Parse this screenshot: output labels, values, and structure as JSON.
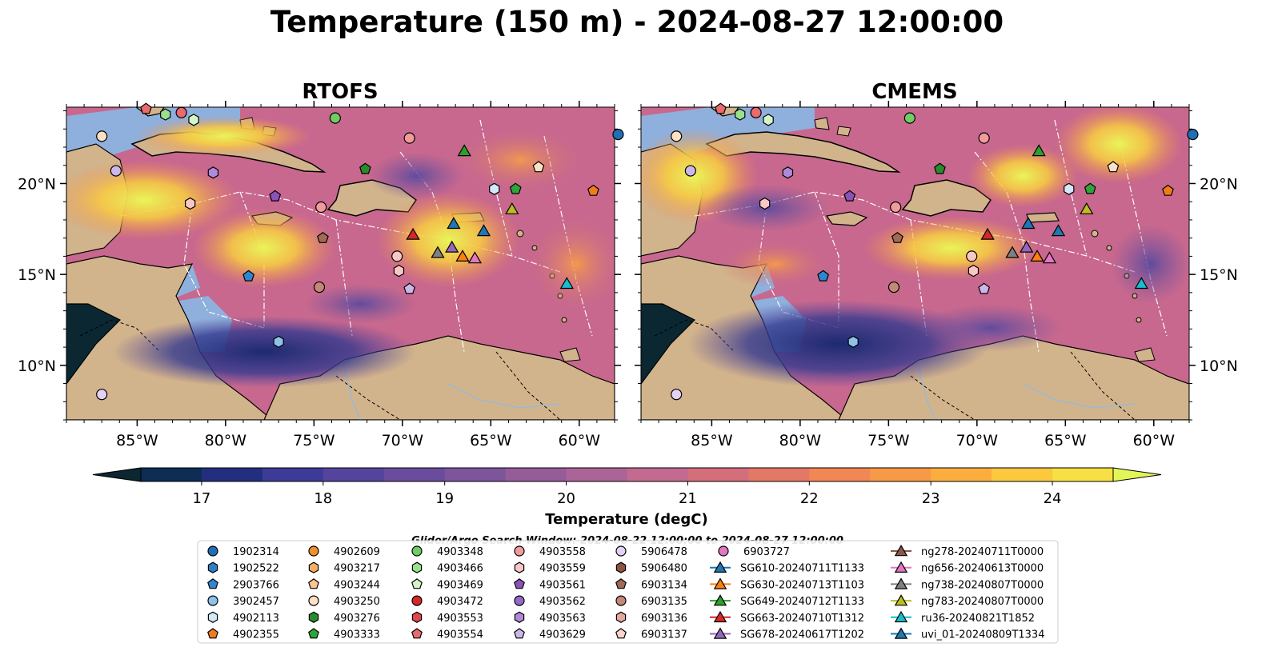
{
  "chart_data": {
    "type": "heatmap",
    "title": "Temperature (150 m) - 2024-08-27 12:00:00",
    "panels": [
      {
        "title": "RTOFS"
      },
      {
        "title": "CMEMS"
      }
    ],
    "x_axis": {
      "ticks": [
        -85,
        -80,
        -75,
        -70,
        -65,
        -60
      ],
      "tick_labels": [
        "85°W",
        "80°W",
        "75°W",
        "70°W",
        "65°W",
        "60°W"
      ],
      "range": [
        -89,
        -58
      ]
    },
    "y_axis": {
      "ticks": [
        10,
        15,
        20
      ],
      "tick_labels": [
        "10°N",
        "15°N",
        "20°N"
      ],
      "range": [
        7,
        24.2
      ]
    },
    "colorbar": {
      "label": "Temperature (degC)",
      "ticks": [
        17,
        18,
        19,
        20,
        21,
        22,
        23,
        24
      ],
      "range": [
        16.5,
        24.5
      ],
      "extend": "both",
      "levels": [
        "#0a2732",
        "#0d2d54",
        "#232f7e",
        "#3c3b97",
        "#54449c",
        "#6a4c9c",
        "#7e549b",
        "#955c9a",
        "#ab6498",
        "#c26a8f",
        "#d46e7b",
        "#e47867",
        "#f08755",
        "#f79a47",
        "#fbae3e",
        "#fbc83e",
        "#f6e044",
        "#e3f659"
      ]
    },
    "legend_title": "Glider/Argo Search Window: 2024-08-22 12:00:00 to 2024-08-27 12:00:00",
    "legend": [
      {
        "label": "1902314",
        "marker": "circle",
        "color": "#1f6fb4"
      },
      {
        "label": "1902522",
        "marker": "hexagon",
        "color": "#2e7fc6"
      },
      {
        "label": "2903766",
        "marker": "pentagon",
        "color": "#2f86d0"
      },
      {
        "label": "3902457",
        "marker": "circle",
        "color": "#8fc2ea"
      },
      {
        "label": "4902113",
        "marker": "hexagon",
        "color": "#d4e9f8"
      },
      {
        "label": "4902355",
        "marker": "pentagon",
        "color": "#f07c1c"
      },
      {
        "label": "4902609",
        "marker": "circle",
        "color": "#f28f2a"
      },
      {
        "label": "4903217",
        "marker": "hexagon",
        "color": "#f9ad63"
      },
      {
        "label": "4903244",
        "marker": "pentagon",
        "color": "#fcc58f"
      },
      {
        "label": "4903250",
        "marker": "circle",
        "color": "#fde1c4"
      },
      {
        "label": "4903276",
        "marker": "hexagon",
        "color": "#2a8b2a"
      },
      {
        "label": "4903333",
        "marker": "pentagon",
        "color": "#2fa43a"
      },
      {
        "label": "4903348",
        "marker": "circle",
        "color": "#6fcd63"
      },
      {
        "label": "4903466",
        "marker": "hexagon",
        "color": "#9be08c"
      },
      {
        "label": "4903469",
        "marker": "pentagon",
        "color": "#d3f5c8"
      },
      {
        "label": "4903472",
        "marker": "circle",
        "color": "#d7262a"
      },
      {
        "label": "4903553",
        "marker": "hexagon",
        "color": "#e0464a"
      },
      {
        "label": "4903554",
        "marker": "pentagon",
        "color": "#ea6b6d"
      },
      {
        "label": "4903558",
        "marker": "circle",
        "color": "#f29b9b"
      },
      {
        "label": "4903559",
        "marker": "hexagon",
        "color": "#f9c6c6"
      },
      {
        "label": "4903561",
        "marker": "pentagon",
        "color": "#8c52b8"
      },
      {
        "label": "4903562",
        "marker": "circle",
        "color": "#9569c5"
      },
      {
        "label": "4903563",
        "marker": "hexagon",
        "color": "#b08ad8"
      },
      {
        "label": "4903629",
        "marker": "pentagon",
        "color": "#cdb6ea"
      },
      {
        "label": "5906478",
        "marker": "circle",
        "color": "#e4d2f4"
      },
      {
        "label": "5906480",
        "marker": "hexagon",
        "color": "#8b5440"
      },
      {
        "label": "6903134",
        "marker": "pentagon",
        "color": "#a06a56"
      },
      {
        "label": "6903135",
        "marker": "circle",
        "color": "#c48878"
      },
      {
        "label": "6903136",
        "marker": "hexagon",
        "color": "#e3a8a0"
      },
      {
        "label": "6903137",
        "marker": "pentagon",
        "color": "#fbd4cc"
      },
      {
        "label": "6903727",
        "marker": "circle",
        "color": "#e377c2"
      },
      {
        "label": "SG610-20240711T1133",
        "marker": "triangle-line",
        "color": "#1f77b4"
      },
      {
        "label": "SG630-20240713T1103",
        "marker": "triangle-line",
        "color": "#ff7f0e"
      },
      {
        "label": "SG649-20240712T1133",
        "marker": "triangle-line",
        "color": "#2ca02c"
      },
      {
        "label": "SG663-20240710T1312",
        "marker": "triangle-line",
        "color": "#d62728"
      },
      {
        "label": "SG678-20240617T1202",
        "marker": "triangle-line",
        "color": "#9467bd"
      },
      {
        "label": "ng278-20240711T0000",
        "marker": "triangle-line",
        "color": "#8c564b"
      },
      {
        "label": "ng656-20240613T0000",
        "marker": "triangle-line",
        "color": "#e377c2"
      },
      {
        "label": "ng738-20240807T0000",
        "marker": "triangle-line",
        "color": "#7f7f7f"
      },
      {
        "label": "ng783-20240807T0000",
        "marker": "triangle-line",
        "color": "#bcbd22"
      },
      {
        "label": "ru36-20240821T1852",
        "marker": "triangle-line",
        "color": "#17becf"
      },
      {
        "label": "uvi_01-20240809T1334",
        "marker": "triangle-line",
        "color": "#1f77b4"
      }
    ],
    "markers": [
      {
        "lon": -87.0,
        "lat": 22.6,
        "shape": "circle",
        "color": "#fde1c4"
      },
      {
        "lon": -86.2,
        "lat": 20.7,
        "shape": "circle",
        "color": "#cdb6ea"
      },
      {
        "lon": -84.5,
        "lat": 24.1,
        "shape": "pentagon",
        "color": "#ea6b6d"
      },
      {
        "lon": -83.4,
        "lat": 23.8,
        "shape": "hexagon",
        "color": "#9be08c"
      },
      {
        "lon": -82.5,
        "lat": 23.9,
        "shape": "circle",
        "color": "#ea6b6d"
      },
      {
        "lon": -81.8,
        "lat": 23.5,
        "shape": "hexagon",
        "color": "#d3f5c8"
      },
      {
        "lon": -80.7,
        "lat": 20.6,
        "shape": "hexagon",
        "color": "#b08ad8"
      },
      {
        "lon": -82.0,
        "lat": 18.9,
        "shape": "hexagon",
        "color": "#f9c6c6"
      },
      {
        "lon": -77.2,
        "lat": 19.3,
        "shape": "pentagon",
        "color": "#8c52b8"
      },
      {
        "lon": -73.8,
        "lat": 23.6,
        "shape": "circle",
        "color": "#6fcd63"
      },
      {
        "lon": -69.6,
        "lat": 22.5,
        "shape": "circle",
        "color": "#f29b9b"
      },
      {
        "lon": -72.1,
        "lat": 20.8,
        "shape": "pentagon",
        "color": "#2a8b2a"
      },
      {
        "lon": -74.6,
        "lat": 18.7,
        "shape": "circle",
        "color": "#f29b9b"
      },
      {
        "lon": -74.5,
        "lat": 17.0,
        "shape": "pentagon",
        "color": "#a06a56"
      },
      {
        "lon": -78.7,
        "lat": 14.9,
        "shape": "pentagon",
        "color": "#2f86d0"
      },
      {
        "lon": -74.7,
        "lat": 14.3,
        "shape": "circle",
        "color": "#c48878"
      },
      {
        "lon": -70.3,
        "lat": 16.0,
        "shape": "circle",
        "color": "#f9c6c6"
      },
      {
        "lon": -70.2,
        "lat": 15.2,
        "shape": "hexagon",
        "color": "#f9c6c6"
      },
      {
        "lon": -69.6,
        "lat": 14.2,
        "shape": "pentagon",
        "color": "#cdb6ea"
      },
      {
        "lon": -77.0,
        "lat": 11.3,
        "shape": "hexagon",
        "color": "#8fc2ea"
      },
      {
        "lon": -87.0,
        "lat": 8.4,
        "shape": "circle",
        "color": "#e4d2f4"
      },
      {
        "lon": -64.8,
        "lat": 19.7,
        "shape": "hexagon",
        "color": "#d4e9f8"
      },
      {
        "lon": -63.6,
        "lat": 19.7,
        "shape": "pentagon",
        "color": "#2fa43a"
      },
      {
        "lon": -62.3,
        "lat": 20.9,
        "shape": "pentagon",
        "color": "#fde1c4"
      },
      {
        "lon": -59.2,
        "lat": 19.6,
        "shape": "pentagon",
        "color": "#f07c1c"
      },
      {
        "lon": -57.8,
        "lat": 22.7,
        "shape": "circle",
        "color": "#1f6fb4"
      },
      {
        "lon": -66.5,
        "lat": 21.8,
        "shape": "triangle",
        "color": "#2ca02c"
      },
      {
        "lon": -69.4,
        "lat": 17.2,
        "shape": "triangle",
        "color": "#d62728"
      },
      {
        "lon": -67.1,
        "lat": 17.8,
        "shape": "triangle",
        "color": "#1f77b4"
      },
      {
        "lon": -63.8,
        "lat": 18.6,
        "shape": "triangle",
        "color": "#bcbd22"
      },
      {
        "lon": -65.4,
        "lat": 17.4,
        "shape": "triangle",
        "color": "#1f77b4"
      },
      {
        "lon": -68.0,
        "lat": 16.2,
        "shape": "triangle",
        "color": "#7f7f7f"
      },
      {
        "lon": -67.2,
        "lat": 16.5,
        "shape": "triangle",
        "color": "#9467bd"
      },
      {
        "lon": -66.6,
        "lat": 16.0,
        "shape": "triangle",
        "color": "#ff7f0e"
      },
      {
        "lon": -65.9,
        "lat": 15.9,
        "shape": "triangle",
        "color": "#e377c2"
      },
      {
        "lon": -60.7,
        "lat": 14.5,
        "shape": "triangle",
        "color": "#17becf"
      }
    ]
  }
}
